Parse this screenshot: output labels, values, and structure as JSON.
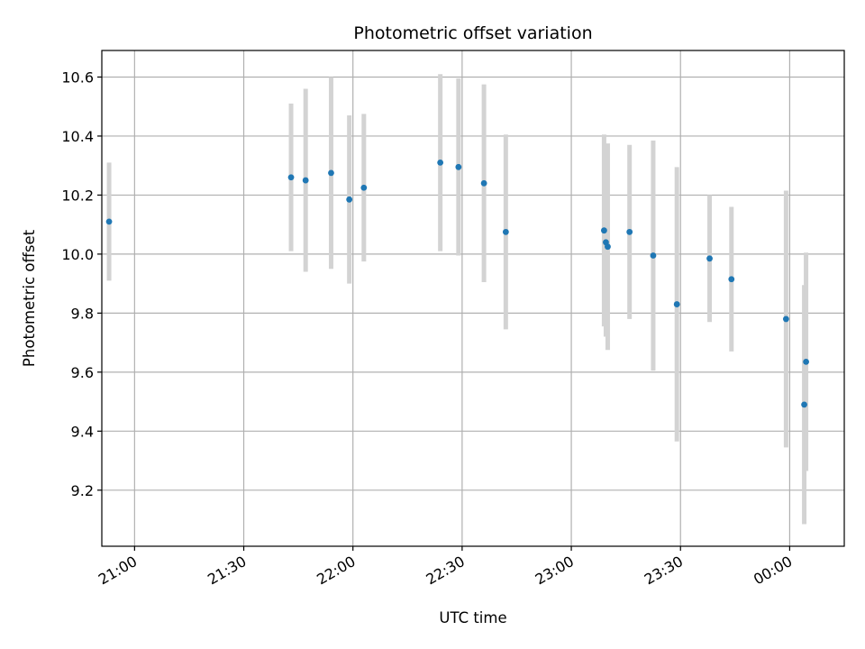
{
  "chart_data": {
    "type": "scatter",
    "title": "Photometric offset variation",
    "xlabel": "UTC time",
    "ylabel": "Photometric offset",
    "x_tick_labels": [
      "21:00",
      "21:30",
      "22:00",
      "22:30",
      "23:00",
      "23:30",
      "00:00"
    ],
    "y_tick_labels": [
      "9.2",
      "9.4",
      "9.6",
      "9.8",
      "10.0",
      "10.2",
      "10.4",
      "10.6"
    ],
    "x_range": [
      "20:51",
      "00:15"
    ],
    "ylim": [
      9.01,
      10.69
    ],
    "grid": true,
    "legend": "none",
    "colors": {
      "point": "#1f77b4",
      "errorbar": "#d3d3d3",
      "grid": "#b0b0b0"
    },
    "points": [
      {
        "time": "20:53",
        "offset": 10.11,
        "error": 0.2
      },
      {
        "time": "21:43",
        "offset": 10.26,
        "error": 0.25
      },
      {
        "time": "21:47",
        "offset": 10.25,
        "error": 0.31
      },
      {
        "time": "21:54",
        "offset": 10.275,
        "error": 0.325
      },
      {
        "time": "21:59",
        "offset": 10.185,
        "error": 0.285
      },
      {
        "time": "22:03",
        "offset": 10.225,
        "error": 0.25
      },
      {
        "time": "22:24",
        "offset": 10.31,
        "error": 0.3
      },
      {
        "time": "22:29",
        "offset": 10.295,
        "error": 0.3
      },
      {
        "time": "22:36",
        "offset": 10.24,
        "error": 0.335
      },
      {
        "time": "22:42",
        "offset": 10.075,
        "error": 0.33
      },
      {
        "time": "23:09",
        "offset": 10.08,
        "error": 0.325
      },
      {
        "time": "23:09.5",
        "offset": 10.04,
        "error": 0.32
      },
      {
        "time": "23:10",
        "offset": 10.025,
        "error": 0.35
      },
      {
        "time": "23:16",
        "offset": 10.075,
        "error": 0.295
      },
      {
        "time": "23:22.5",
        "offset": 9.995,
        "error": 0.39
      },
      {
        "time": "23:29",
        "offset": 9.83,
        "error": 0.465
      },
      {
        "time": "23:38",
        "offset": 9.985,
        "error": 0.215
      },
      {
        "time": "23:44",
        "offset": 9.915,
        "error": 0.245
      },
      {
        "time": "23:59",
        "offset": 9.78,
        "error": 0.435
      },
      {
        "time": "00:04",
        "offset": 9.49,
        "error": 0.405
      },
      {
        "time": "00:04.5",
        "offset": 9.635,
        "error": 0.37
      }
    ]
  }
}
